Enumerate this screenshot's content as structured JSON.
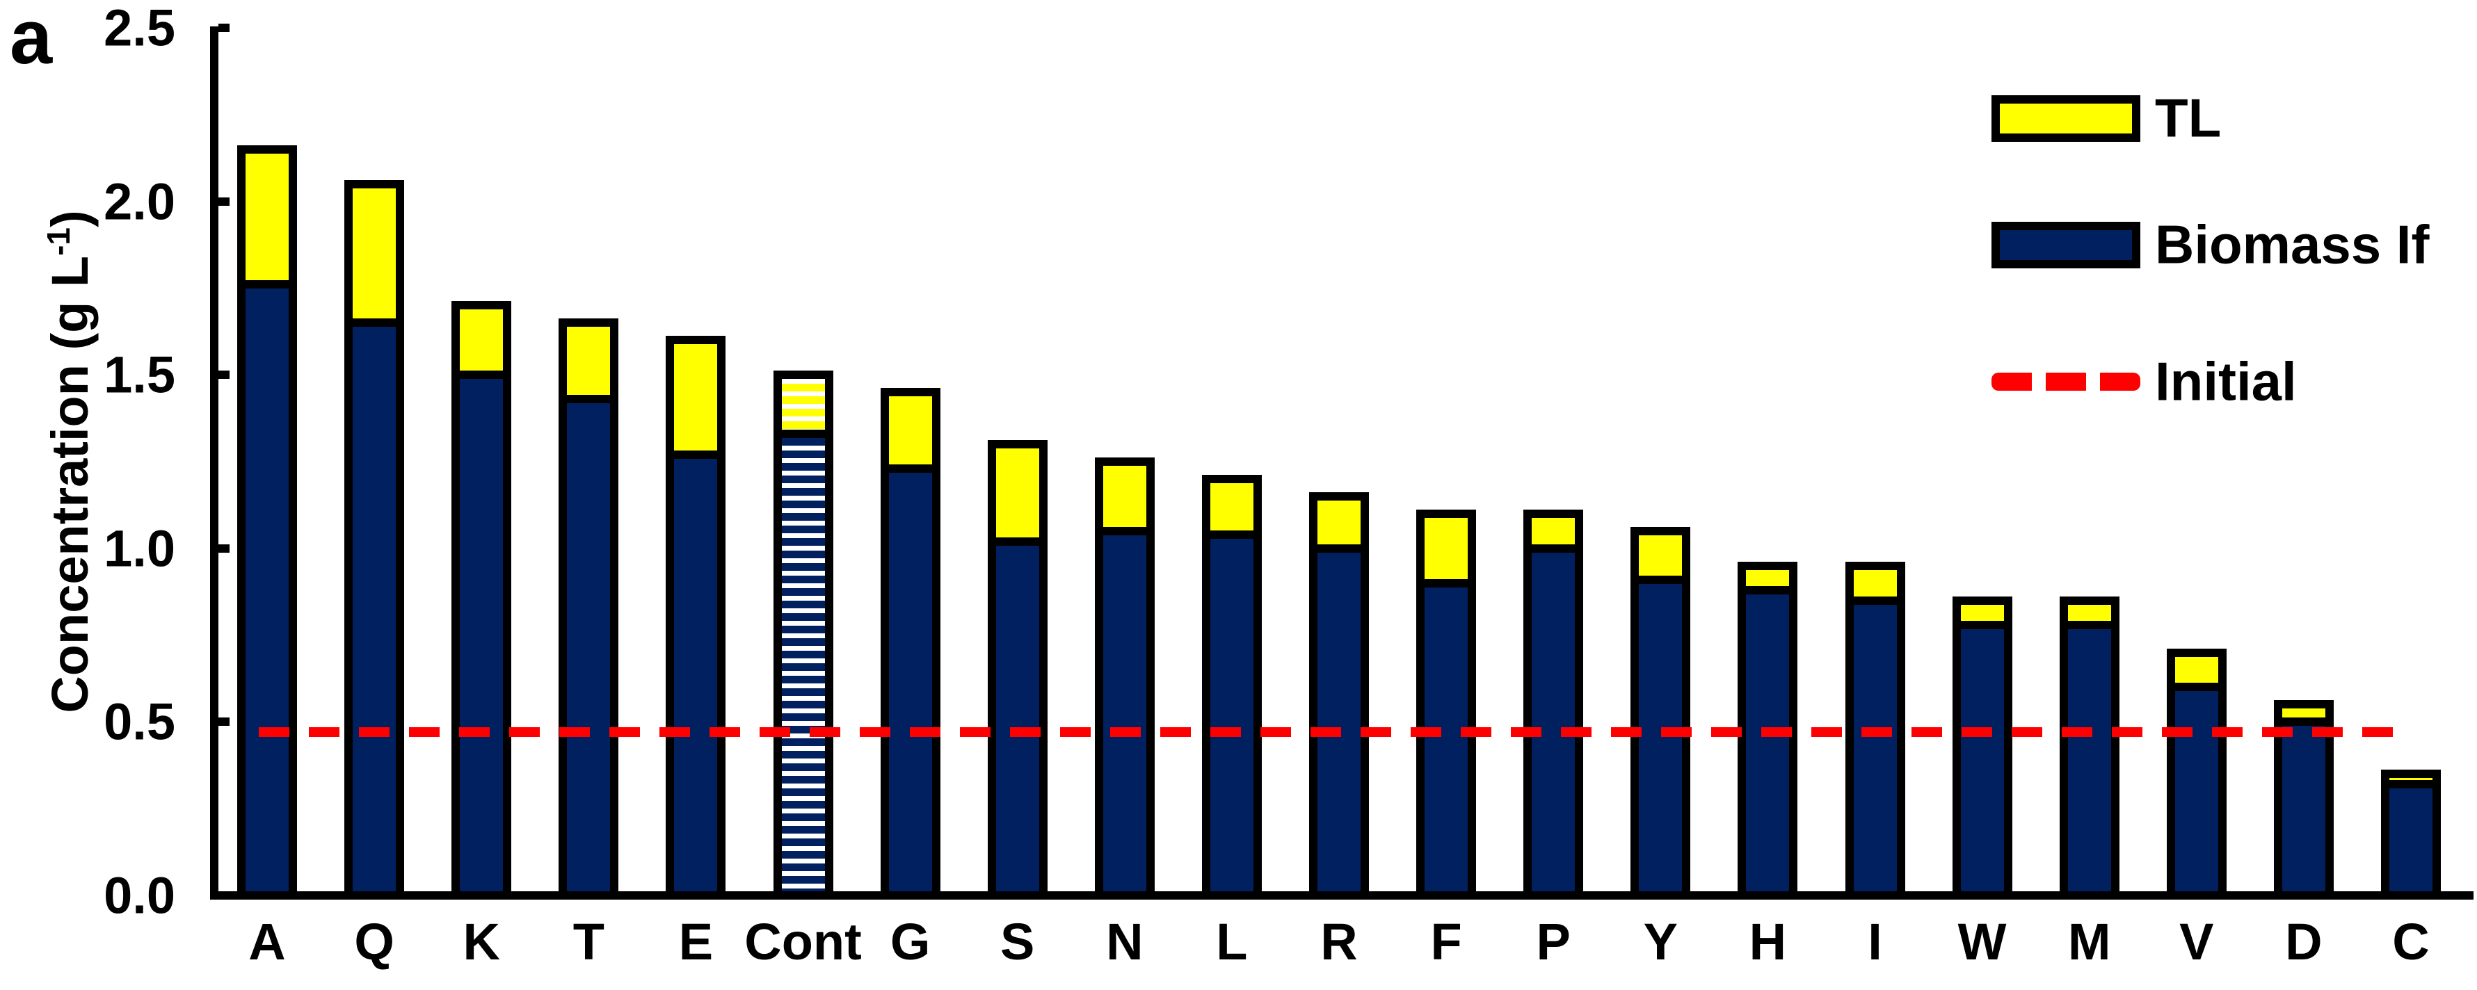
{
  "panel_label": "a",
  "y_axis": {
    "title_main": "Concentration (g L",
    "title_sup": "-1",
    "title_close": ")",
    "tick_labels": [
      "0.0",
      "0.5",
      "1.0",
      "1.5",
      "2.0",
      "2.5"
    ]
  },
  "legend": [
    {
      "label": "TL",
      "marker": "yellow-box"
    },
    {
      "label": "Biomass If",
      "marker": "navy-box"
    },
    {
      "label": "Initial",
      "marker": "red-dash"
    }
  ],
  "colors": {
    "navy": "#002060",
    "yellow": "#ffff00",
    "red": "#ff0000",
    "black": "#000000",
    "background": "#ffffff"
  },
  "chart_data": {
    "type": "bar",
    "stacked": true,
    "title": "",
    "xlabel": "",
    "ylabel": "Concentration (g L-1)",
    "ylim": [
      0,
      2.5
    ],
    "ytick_step": 0.5,
    "grid": false,
    "legend_position": "top-right",
    "categories": [
      "A",
      "Q",
      "K",
      "T",
      "E",
      "Cont",
      "G",
      "S",
      "N",
      "L",
      "R",
      "F",
      "P",
      "Y",
      "H",
      "I",
      "W",
      "M",
      "V",
      "D",
      "C"
    ],
    "series": [
      {
        "name": "Biomass If",
        "values": [
          1.76,
          1.65,
          1.5,
          1.43,
          1.27,
          1.33,
          1.23,
          1.02,
          1.05,
          1.04,
          1.0,
          0.9,
          1.0,
          0.91,
          0.88,
          0.85,
          0.78,
          0.78,
          0.6,
          0.5,
          0.32
        ]
      },
      {
        "name": "TL",
        "values": [
          0.39,
          0.4,
          0.2,
          0.22,
          0.33,
          0.17,
          0.22,
          0.28,
          0.2,
          0.16,
          0.15,
          0.2,
          0.1,
          0.14,
          0.07,
          0.1,
          0.07,
          0.07,
          0.1,
          0.05,
          0.03
        ]
      }
    ],
    "hatched_category": "Cont",
    "initial_line": {
      "label": "Initial",
      "value": 0.47
    }
  }
}
